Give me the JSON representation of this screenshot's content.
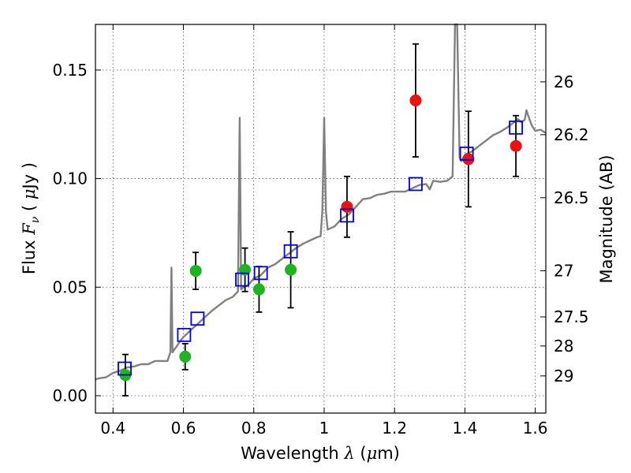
{
  "chart_data": {
    "type": "scatter",
    "xlabel": "Wavelength  λ (μm)",
    "ylabel": "Flux  Fν  ( μJy )",
    "ylabel_right": "Magnitude (AB)",
    "xlim": [
      0.35,
      1.63
    ],
    "ylim": [
      -0.008,
      0.171
    ],
    "grid": true,
    "x_ticks": [
      0.4,
      0.6,
      0.8,
      1.0,
      1.2,
      1.4,
      1.6
    ],
    "x_tick_labels": [
      "0.4",
      "0.6",
      "0.8",
      "1",
      "1.2",
      "1.4",
      "1.6"
    ],
    "y_ticks": [
      0.0,
      0.05,
      0.1,
      0.15
    ],
    "y_tick_labels": [
      "0.00",
      "0.05",
      "0.10",
      "0.15"
    ],
    "right_ticks": [
      {
        "mag": 26,
        "label": "26"
      },
      {
        "mag": 26.2,
        "label": "26.2"
      },
      {
        "mag": 26.5,
        "label": "26.5"
      },
      {
        "mag": 27,
        "label": "27"
      },
      {
        "mag": 27.5,
        "label": "27.5"
      },
      {
        "mag": 28,
        "label": "28"
      },
      {
        "mag": 29,
        "label": "29"
      }
    ],
    "colors": {
      "spectrum": "#808080",
      "green": "#1db51d",
      "red": "#ee1111",
      "model_box": "#0000dd",
      "errorbar": "#000000",
      "grid": "#555555"
    },
    "series": [
      {
        "marker": "circle",
        "color": "green",
        "points": [
          {
            "x": 0.435,
            "y": 0.0095,
            "err": 0.0095
          },
          {
            "x": 0.605,
            "y": 0.018,
            "err": 0.006
          },
          {
            "x": 0.635,
            "y": 0.0575,
            "err": 0.0085
          },
          {
            "x": 0.775,
            "y": 0.058,
            "err": 0.01
          },
          {
            "x": 0.815,
            "y": 0.049,
            "err": 0.0105
          },
          {
            "x": 0.905,
            "y": 0.058,
            "err": 0.0175
          }
        ]
      },
      {
        "marker": "circle",
        "color": "red",
        "points": [
          {
            "x": 1.065,
            "y": 0.087,
            "err": 0.014
          },
          {
            "x": 1.26,
            "y": 0.136,
            "err": 0.026
          },
          {
            "x": 1.41,
            "y": 0.109,
            "err": 0.022
          },
          {
            "x": 1.545,
            "y": 0.115,
            "err": 0.014
          }
        ]
      },
      {
        "marker": "square",
        "color": "model_box",
        "points": [
          {
            "x": 0.433,
            "y": 0.0125
          },
          {
            "x": 0.602,
            "y": 0.028
          },
          {
            "x": 0.64,
            "y": 0.0355
          },
          {
            "x": 0.767,
            "y": 0.0535
          },
          {
            "x": 0.82,
            "y": 0.0565
          },
          {
            "x": 0.905,
            "y": 0.0665
          },
          {
            "x": 1.065,
            "y": 0.083
          },
          {
            "x": 1.26,
            "y": 0.0975
          },
          {
            "x": 1.405,
            "y": 0.1115
          },
          {
            "x": 1.545,
            "y": 0.1235
          }
        ]
      }
    ],
    "spectrum": [
      [
        0.35,
        0.0075
      ],
      [
        0.36,
        0.008
      ],
      [
        0.38,
        0.0085
      ],
      [
        0.4,
        0.0105
      ],
      [
        0.42,
        0.0115
      ],
      [
        0.44,
        0.013
      ],
      [
        0.46,
        0.0135
      ],
      [
        0.48,
        0.0145
      ],
      [
        0.5,
        0.0145
      ],
      [
        0.52,
        0.016
      ],
      [
        0.54,
        0.016
      ],
      [
        0.555,
        0.016
      ],
      [
        0.563,
        0.02
      ],
      [
        0.566,
        0.059
      ],
      [
        0.569,
        0.02
      ],
      [
        0.575,
        0.0215
      ],
      [
        0.58,
        0.0225
      ],
      [
        0.59,
        0.025
      ],
      [
        0.6,
        0.027
      ],
      [
        0.62,
        0.03
      ],
      [
        0.64,
        0.033
      ],
      [
        0.66,
        0.036
      ],
      [
        0.68,
        0.039
      ],
      [
        0.7,
        0.0415
      ],
      [
        0.72,
        0.044
      ],
      [
        0.74,
        0.0455
      ],
      [
        0.755,
        0.048
      ],
      [
        0.76,
        0.128
      ],
      [
        0.764,
        0.049
      ],
      [
        0.77,
        0.05
      ],
      [
        0.78,
        0.0505
      ],
      [
        0.79,
        0.052
      ],
      [
        0.8,
        0.054
      ],
      [
        0.82,
        0.0555
      ],
      [
        0.84,
        0.059
      ],
      [
        0.86,
        0.0605
      ],
      [
        0.88,
        0.063
      ],
      [
        0.9,
        0.0655
      ],
      [
        0.92,
        0.068
      ],
      [
        0.94,
        0.07
      ],
      [
        0.96,
        0.0715
      ],
      [
        0.98,
        0.073
      ],
      [
        0.99,
        0.0735
      ],
      [
        0.995,
        0.085
      ],
      [
        1.0,
        0.128
      ],
      [
        1.005,
        0.085
      ],
      [
        1.01,
        0.0765
      ],
      [
        1.03,
        0.078
      ],
      [
        1.05,
        0.0815
      ],
      [
        1.07,
        0.0835
      ],
      [
        1.09,
        0.087
      ],
      [
        1.11,
        0.0905
      ],
      [
        1.13,
        0.091
      ],
      [
        1.15,
        0.0925
      ],
      [
        1.17,
        0.093
      ],
      [
        1.19,
        0.094
      ],
      [
        1.21,
        0.094
      ],
      [
        1.23,
        0.094
      ],
      [
        1.25,
        0.0955
      ],
      [
        1.27,
        0.097
      ],
      [
        1.29,
        0.0975
      ],
      [
        1.3,
        0.095
      ],
      [
        1.31,
        0.099
      ],
      [
        1.33,
        0.0985
      ],
      [
        1.35,
        0.099
      ],
      [
        1.365,
        0.101
      ],
      [
        1.372,
        0.175
      ],
      [
        1.378,
        0.175
      ],
      [
        1.385,
        0.11
      ],
      [
        1.39,
        0.108
      ],
      [
        1.4,
        0.111
      ],
      [
        1.42,
        0.1125
      ],
      [
        1.44,
        0.115
      ],
      [
        1.46,
        0.1175
      ],
      [
        1.48,
        0.12
      ],
      [
        1.5,
        0.1215
      ],
      [
        1.52,
        0.1235
      ],
      [
        1.54,
        0.126
      ],
      [
        1.55,
        0.1275
      ],
      [
        1.56,
        0.126
      ],
      [
        1.57,
        0.127
      ],
      [
        1.575,
        0.1315
      ],
      [
        1.58,
        0.129
      ],
      [
        1.59,
        0.1245
      ],
      [
        1.6,
        0.122
      ],
      [
        1.615,
        0.1225
      ],
      [
        1.63,
        0.121
      ]
    ]
  }
}
